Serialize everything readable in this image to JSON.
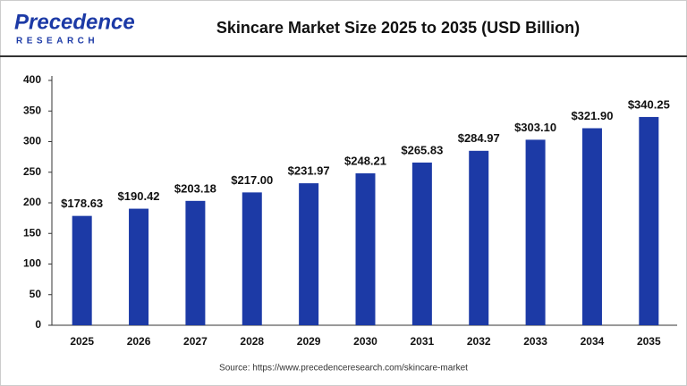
{
  "logo": {
    "name": "Precedence",
    "subtitle": "RESEARCH"
  },
  "chart_data": {
    "type": "bar",
    "title": "Skincare Market Size 2025 to 2035 (USD Billion)",
    "categories": [
      "2025",
      "2026",
      "2027",
      "2028",
      "2029",
      "2030",
      "2031",
      "2032",
      "2033",
      "2034",
      "2035"
    ],
    "values": [
      178.63,
      190.42,
      203.18,
      217.0,
      231.97,
      248.21,
      265.83,
      284.97,
      303.1,
      321.9,
      340.25
    ],
    "value_labels": [
      "$178.63",
      "$190.42",
      "$203.18",
      "$217.00",
      "$231.97",
      "$248.21",
      "$265.83",
      "$284.97",
      "$303.10",
      "$321.90",
      "$340.25"
    ],
    "color": "#1c3aa6",
    "ylim": [
      0,
      400
    ],
    "yticks": [
      0,
      50,
      100,
      150,
      200,
      250,
      300,
      350,
      400
    ],
    "grid": false,
    "source": "Source: https://www.precedenceresearch.com/skincare-market"
  }
}
